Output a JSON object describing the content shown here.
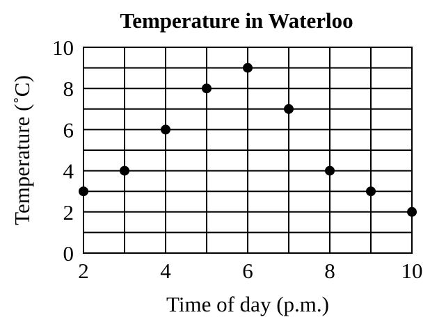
{
  "chart_data": {
    "type": "scatter",
    "title": "Temperature in Waterloo",
    "xlabel": "Time of day (p.m.)",
    "ylabel": "Temperature (˚C)",
    "xlim": [
      2,
      10
    ],
    "ylim": [
      0,
      10
    ],
    "x_ticks": [
      2,
      4,
      6,
      8,
      10
    ],
    "y_ticks": [
      0,
      2,
      4,
      6,
      8,
      10
    ],
    "x_minor_step": 1,
    "y_minor_step": 1,
    "grid": true,
    "marker_color": "#000000",
    "x": [
      2,
      3,
      4,
      5,
      6,
      7,
      8,
      9,
      10
    ],
    "y": [
      3,
      4,
      6,
      8,
      9,
      7,
      4,
      3,
      2
    ]
  }
}
